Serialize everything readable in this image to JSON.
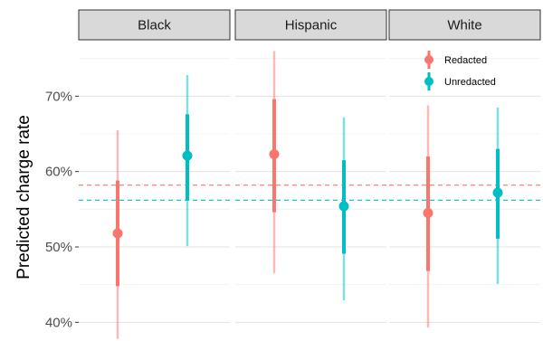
{
  "chart_data": {
    "type": "pointrange",
    "ylabel": "Predicted charge rate",
    "ylim": [
      0.38,
      0.77
    ],
    "y_ticks": [
      0.4,
      0.5,
      0.6,
      0.7
    ],
    "y_tick_labels": [
      "40%",
      "50%",
      "60%",
      "70%"
    ],
    "facets": [
      "Black",
      "Hispanic",
      "White"
    ],
    "series": [
      {
        "name": "Redacted",
        "color": "#F8766D",
        "reference_line": 0.582,
        "values": [
          {
            "facet": "Black",
            "estimate": 0.518,
            "inner": [
              0.448,
              0.588
            ],
            "outer": [
              0.378,
              0.655
            ]
          },
          {
            "facet": "Hispanic",
            "estimate": 0.623,
            "inner": [
              0.546,
              0.696
            ],
            "outer": [
              0.465,
              0.76
            ]
          },
          {
            "facet": "White",
            "estimate": 0.545,
            "inner": [
              0.468,
              0.62
            ],
            "outer": [
              0.393,
              0.688
            ]
          }
        ]
      },
      {
        "name": "Unredacted",
        "color": "#00BFC4",
        "reference_line": 0.562,
        "values": [
          {
            "facet": "Black",
            "estimate": 0.621,
            "inner": [
              0.562,
              0.676
            ],
            "outer": [
              0.501,
              0.728
            ]
          },
          {
            "facet": "Hispanic",
            "estimate": 0.554,
            "inner": [
              0.491,
              0.615
            ],
            "outer": [
              0.429,
              0.672
            ]
          },
          {
            "facet": "White",
            "estimate": 0.572,
            "inner": [
              0.511,
              0.63
            ],
            "outer": [
              0.451,
              0.685
            ]
          }
        ]
      }
    ],
    "legend_position": "top-right inside last panel",
    "grid": true
  }
}
